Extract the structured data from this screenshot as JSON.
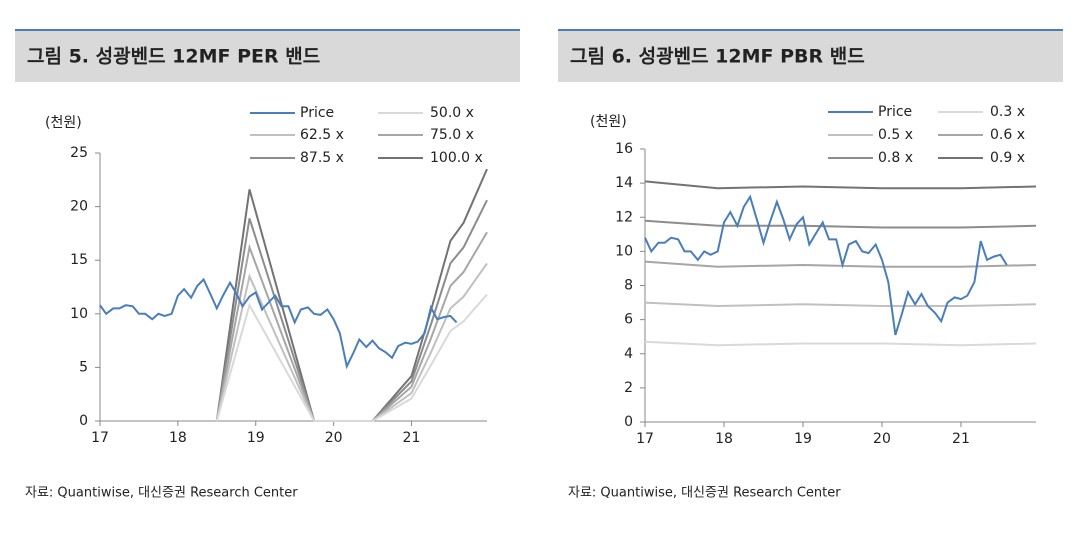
{
  "chart_data": [
    {
      "type": "line",
      "title": "그림 5. 성광벤드 12MF PER 밴드",
      "ylabel": "(천원)",
      "source": "자료: Quantiwise, 대신증권 Research Center",
      "xlim": [
        17,
        21.97
      ],
      "xticks": [
        17,
        18,
        19,
        20,
        21
      ],
      "ylim": [
        0,
        25
      ],
      "yticks": [
        0,
        5,
        10,
        15,
        20,
        25
      ],
      "series": [
        {
          "name": "Price",
          "color": "#4a7ebb",
          "x": [
            17,
            17.08,
            17.17,
            17.25,
            17.33,
            17.42,
            17.5,
            17.58,
            17.67,
            17.75,
            17.83,
            17.92,
            18,
            18.08,
            18.17,
            18.25,
            18.33,
            18.42,
            18.5,
            18.58,
            18.67,
            18.75,
            18.83,
            18.92,
            19,
            19.08,
            19.17,
            19.25,
            19.33,
            19.42,
            19.5,
            19.58,
            19.67,
            19.75,
            19.83,
            19.92,
            20,
            20.08,
            20.17,
            20.25,
            20.33,
            20.42,
            20.5,
            20.58,
            20.67,
            20.75,
            20.83,
            20.92,
            21,
            21.08,
            21.17,
            21.25,
            21.33,
            21.42,
            21.5,
            21.58
          ],
          "values": [
            10.8,
            10.0,
            10.5,
            10.5,
            10.8,
            10.7,
            10.0,
            10.0,
            9.5,
            10.0,
            9.8,
            10.0,
            11.7,
            12.3,
            11.5,
            12.6,
            13.2,
            11.8,
            10.5,
            11.7,
            12.9,
            11.9,
            10.7,
            11.6,
            12.0,
            10.4,
            11.1,
            11.7,
            10.7,
            10.7,
            9.2,
            10.4,
            10.6,
            10.0,
            9.9,
            10.4,
            9.5,
            8.2,
            5.1,
            6.3,
            7.6,
            6.9,
            7.5,
            6.8,
            6.4,
            5.9,
            7.0,
            7.3,
            7.2,
            7.4,
            8.2,
            10.6,
            9.5,
            9.7,
            9.8,
            9.2
          ]
        },
        {
          "name": "50.0 x",
          "color": "#d9d9d9",
          "x": [
            18.5,
            18.92,
            19.75,
            20.5,
            21,
            21.25,
            21.5,
            21.67,
            21.97
          ],
          "values": [
            0,
            10.8,
            0,
            0,
            2.1,
            5.2,
            8.4,
            9.3,
            11.8
          ]
        },
        {
          "name": "62.5 x",
          "color": "#c0c0c0",
          "x": [
            18.5,
            18.92,
            19.75,
            20.5,
            21,
            21.25,
            21.5,
            21.67,
            21.97
          ],
          "values": [
            0,
            13.5,
            0,
            0,
            2.6,
            6.4,
            10.5,
            11.6,
            14.7
          ]
        },
        {
          "name": "75.0 x",
          "color": "#a6a6a6",
          "x": [
            18.5,
            18.92,
            19.75,
            20.5,
            21,
            21.25,
            21.5,
            21.67,
            21.97
          ],
          "values": [
            0,
            16.2,
            0,
            0,
            3.2,
            7.7,
            12.6,
            13.9,
            17.6
          ]
        },
        {
          "name": "87.5 x",
          "color": "#8c8c8c",
          "x": [
            18.5,
            18.92,
            19.75,
            20.5,
            21,
            21.25,
            21.5,
            21.67,
            21.97
          ],
          "values": [
            0,
            18.9,
            0,
            0,
            3.7,
            9.0,
            14.7,
            16.2,
            20.6
          ]
        },
        {
          "name": "100.0 x",
          "color": "#737373",
          "x": [
            18.5,
            18.92,
            19.75,
            20.5,
            21,
            21.25,
            21.5,
            21.67,
            21.97
          ],
          "values": [
            0,
            21.6,
            0,
            0,
            4.2,
            10.3,
            16.8,
            18.5,
            23.5
          ]
        }
      ]
    },
    {
      "type": "line",
      "title": "그림 6. 성광벤드 12MF PBR 밴드",
      "ylabel": "(천원)",
      "source": "자료: Quantiwise, 대신증권 Research Center",
      "xlim": [
        17,
        21.95
      ],
      "xticks": [
        17,
        18,
        19,
        20,
        21
      ],
      "ylim": [
        0,
        16
      ],
      "yticks": [
        0,
        2,
        4,
        6,
        8,
        10,
        12,
        14,
        16
      ],
      "series": [
        {
          "name": "Price",
          "color": "#4a7ebb",
          "x": [
            17,
            17.08,
            17.17,
            17.25,
            17.33,
            17.42,
            17.5,
            17.58,
            17.67,
            17.75,
            17.83,
            17.92,
            18,
            18.08,
            18.17,
            18.25,
            18.33,
            18.42,
            18.5,
            18.58,
            18.67,
            18.75,
            18.83,
            18.92,
            19,
            19.08,
            19.17,
            19.25,
            19.33,
            19.42,
            19.5,
            19.58,
            19.67,
            19.75,
            19.83,
            19.92,
            20,
            20.08,
            20.17,
            20.25,
            20.33,
            20.42,
            20.5,
            20.58,
            20.67,
            20.75,
            20.83,
            20.92,
            21,
            21.08,
            21.17,
            21.25,
            21.33,
            21.42,
            21.5,
            21.58
          ],
          "values": [
            10.8,
            10.0,
            10.5,
            10.5,
            10.8,
            10.7,
            10.0,
            10.0,
            9.5,
            10.0,
            9.8,
            10.0,
            11.7,
            12.3,
            11.5,
            12.6,
            13.2,
            11.8,
            10.5,
            11.7,
            12.9,
            11.9,
            10.7,
            11.6,
            12.0,
            10.4,
            11.1,
            11.7,
            10.7,
            10.7,
            9.2,
            10.4,
            10.6,
            10.0,
            9.9,
            10.4,
            9.5,
            8.2,
            5.1,
            6.3,
            7.6,
            6.9,
            7.5,
            6.8,
            6.4,
            5.9,
            7.0,
            7.3,
            7.2,
            7.4,
            8.2,
            10.6,
            9.5,
            9.7,
            9.8,
            9.2
          ]
        },
        {
          "name": "0.3 x",
          "color": "#d9d9d9",
          "x": [
            17,
            17.92,
            19,
            20,
            21,
            21.95
          ],
          "values": [
            4.7,
            4.5,
            4.6,
            4.6,
            4.5,
            4.6
          ]
        },
        {
          "name": "0.5 x",
          "color": "#c0c0c0",
          "x": [
            17,
            17.92,
            19,
            20,
            21,
            21.95
          ],
          "values": [
            7.0,
            6.8,
            6.9,
            6.8,
            6.8,
            6.9
          ]
        },
        {
          "name": "0.6 x",
          "color": "#a6a6a6",
          "x": [
            17,
            17.92,
            19,
            20,
            21,
            21.95
          ],
          "values": [
            9.4,
            9.1,
            9.2,
            9.1,
            9.1,
            9.2
          ]
        },
        {
          "name": "0.8 x",
          "color": "#8c8c8c",
          "x": [
            17,
            17.92,
            19,
            20,
            21,
            21.95
          ],
          "values": [
            11.8,
            11.5,
            11.5,
            11.4,
            11.4,
            11.5
          ]
        },
        {
          "name": "0.9 x",
          "color": "#737373",
          "x": [
            17,
            17.92,
            19,
            20,
            21,
            21.95
          ],
          "values": [
            14.1,
            13.7,
            13.8,
            13.7,
            13.7,
            13.8
          ]
        }
      ]
    }
  ]
}
